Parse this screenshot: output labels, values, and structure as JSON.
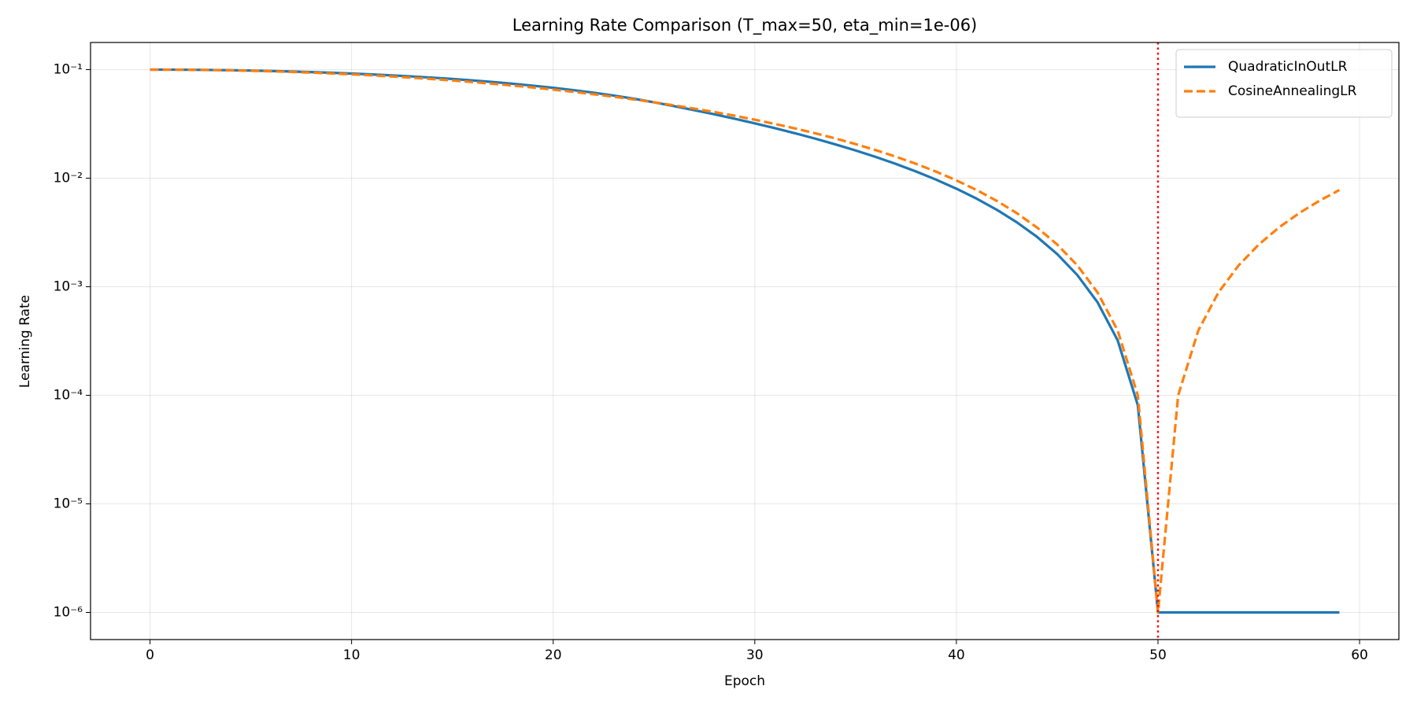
{
  "chart_data": {
    "type": "line",
    "title": "Learning Rate Comparison (T_max=50, eta_min=1e-06)",
    "x_label": "Epoch",
    "y_label": "Learning Rate",
    "x": [
      0,
      1,
      2,
      3,
      4,
      5,
      6,
      7,
      8,
      9,
      10,
      11,
      12,
      13,
      14,
      15,
      16,
      17,
      18,
      19,
      20,
      21,
      22,
      23,
      24,
      25,
      26,
      27,
      28,
      29,
      30,
      31,
      32,
      33,
      34,
      35,
      36,
      37,
      38,
      39,
      40,
      41,
      42,
      43,
      44,
      45,
      46,
      47,
      48,
      49,
      50,
      51,
      52,
      53,
      54,
      55,
      56,
      57,
      58,
      59
    ],
    "series": [
      {
        "name": "QuadraticInOutLR",
        "color": "#1f77b4",
        "dash": "solid",
        "values": [
          0.1,
          0.09992,
          0.09968,
          0.09928,
          0.09872,
          0.098,
          0.09712,
          0.09608,
          0.09488,
          0.09352,
          0.092,
          0.09032,
          0.08848,
          0.08648,
          0.08432,
          0.082,
          0.07952,
          0.07688,
          0.07408,
          0.07112,
          0.068,
          0.06472,
          0.06128,
          0.05768,
          0.05392,
          0.05,
          0.04608,
          0.04232,
          0.03872,
          0.03528,
          0.032,
          0.02888,
          0.02592,
          0.02312,
          0.02048,
          0.018,
          0.01568,
          0.01352,
          0.01152,
          0.00968,
          0.008,
          0.00648,
          0.00512,
          0.00392,
          0.00288,
          0.002,
          0.00128,
          0.00072,
          0.000321,
          8.1e-05,
          1e-06,
          1e-06,
          1e-06,
          1e-06,
          1e-06,
          1e-06,
          1e-06,
          1e-06,
          1e-06,
          1e-06
        ]
      },
      {
        "name": "CosineAnnealingLR",
        "color": "#ff7f0e",
        "dash": "dashed",
        "values": [
          0.1,
          0.0999,
          0.09961,
          0.09911,
          0.09843,
          0.09755,
          0.09649,
          0.09524,
          0.09382,
          0.09222,
          0.09045,
          0.08853,
          0.08645,
          0.08423,
          0.08187,
          0.07939,
          0.07679,
          0.07409,
          0.07129,
          0.06841,
          0.06545,
          0.06243,
          0.05937,
          0.05627,
          0.05314,
          0.05,
          0.04686,
          0.04373,
          0.04063,
          0.03759,
          0.03455,
          0.03159,
          0.02871,
          0.02591,
          0.02321,
          0.02061,
          0.01813,
          0.01577,
          0.01355,
          0.01147,
          0.009549,
          0.007785,
          0.006185,
          0.004759,
          0.003512,
          0.002448,
          0.001572,
          0.0008866,
          0.0003952,
          9.97e-05,
          1e-06,
          9.97e-05,
          0.0003952,
          0.0008866,
          0.001572,
          0.002448,
          0.003512,
          0.004759,
          0.006185,
          0.007785
        ]
      }
    ],
    "vline": {
      "x": 50,
      "color": "#ff0000"
    },
    "xlim": [
      -2.95,
      61.95
    ],
    "xticks": [
      0,
      10,
      20,
      30,
      40,
      50,
      60
    ],
    "ylim": [
      5.623e-07,
      0.1778
    ],
    "yscale": "log",
    "yticks": [
      {
        "value": 1e-06,
        "label": "10⁻⁶"
      },
      {
        "value": 1e-05,
        "label": "10⁻⁵"
      },
      {
        "value": 0.0001,
        "label": "10⁻⁴"
      },
      {
        "value": 0.001,
        "label": "10⁻³"
      },
      {
        "value": 0.01,
        "label": "10⁻²"
      },
      {
        "value": 0.1,
        "label": "10⁻¹"
      }
    ],
    "grid": true,
    "legend": "upper right"
  }
}
